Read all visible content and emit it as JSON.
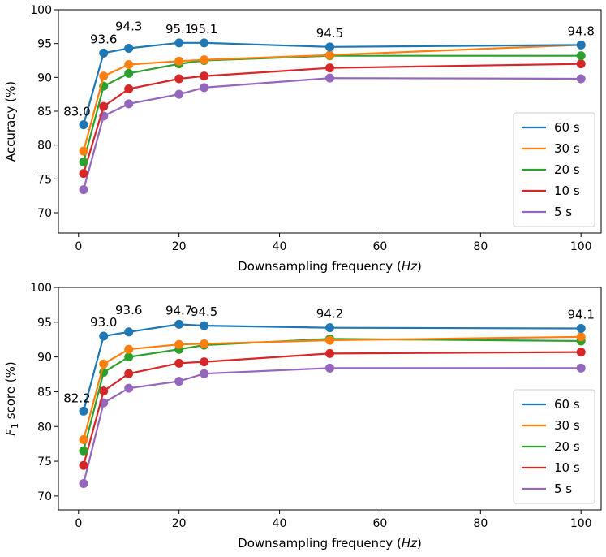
{
  "chart_data": [
    {
      "type": "line",
      "ylabel": "Accuracy (%)",
      "xlabel": {
        "prefix": "Downsampling frequency (",
        "italic": "Hz",
        "suffix": ")"
      },
      "xlim": [
        -4,
        104
      ],
      "ylim": [
        67,
        100
      ],
      "x_ticks": [
        0,
        20,
        40,
        60,
        80,
        100
      ],
      "y_ticks": [
        70,
        75,
        80,
        85,
        90,
        95,
        100
      ],
      "grid": false,
      "legend_position": "lower right",
      "x": [
        1,
        5,
        10,
        20,
        25,
        50,
        100
      ],
      "series": [
        {
          "name": "60 s",
          "color": "#1f77b4",
          "values": [
            83.0,
            93.6,
            94.3,
            95.1,
            95.1,
            94.5,
            94.8
          ]
        },
        {
          "name": "30 s",
          "color": "#ff7f0e",
          "values": [
            79.1,
            90.2,
            91.9,
            92.4,
            92.6,
            93.3,
            94.8
          ]
        },
        {
          "name": "20 s",
          "color": "#2ca02c",
          "values": [
            77.5,
            88.7,
            90.6,
            92.0,
            92.5,
            93.2,
            93.2
          ]
        },
        {
          "name": "10 s",
          "color": "#d62728",
          "values": [
            75.8,
            85.7,
            88.3,
            89.8,
            90.2,
            91.4,
            92.0
          ]
        },
        {
          "name": "5 s",
          "color": "#9467bd",
          "values": [
            73.4,
            84.3,
            86.1,
            87.5,
            88.5,
            89.9,
            89.8
          ]
        }
      ],
      "annotations": [
        {
          "x": 1,
          "y": 83.0,
          "text": "83.0"
        },
        {
          "x": 5,
          "y": 93.6,
          "text": "93.6"
        },
        {
          "x": 10,
          "y": 94.3,
          "text": "94.3"
        },
        {
          "x": 20,
          "y": 95.1,
          "text": "95.1"
        },
        {
          "x": 25,
          "y": 95.1,
          "text": "95.1"
        },
        {
          "x": 50,
          "y": 94.5,
          "text": "94.5"
        },
        {
          "x": 100,
          "y": 94.8,
          "text": "94.8"
        }
      ]
    },
    {
      "type": "line",
      "ylabel": {
        "prefix": "F",
        "subscript": "1",
        "suffix": " score (%)"
      },
      "xlabel": {
        "prefix": "Downsampling frequency (",
        "italic": "Hz",
        "suffix": ")"
      },
      "xlim": [
        -4,
        104
      ],
      "ylim": [
        68,
        100
      ],
      "x_ticks": [
        0,
        20,
        40,
        60,
        80,
        100
      ],
      "y_ticks": [
        70,
        75,
        80,
        85,
        90,
        95,
        100
      ],
      "grid": false,
      "legend_position": "lower right",
      "x": [
        1,
        5,
        10,
        20,
        25,
        50,
        100
      ],
      "series": [
        {
          "name": "60 s",
          "color": "#1f77b4",
          "values": [
            82.2,
            93.0,
            93.6,
            94.7,
            94.5,
            94.2,
            94.1
          ]
        },
        {
          "name": "30 s",
          "color": "#ff7f0e",
          "values": [
            78.1,
            89.0,
            91.1,
            91.8,
            91.9,
            92.4,
            92.9
          ]
        },
        {
          "name": "20 s",
          "color": "#2ca02c",
          "values": [
            76.5,
            87.8,
            90.0,
            91.1,
            91.7,
            92.6,
            92.3
          ]
        },
        {
          "name": "10 s",
          "color": "#d62728",
          "values": [
            74.4,
            85.1,
            87.6,
            89.1,
            89.3,
            90.5,
            90.7
          ]
        },
        {
          "name": "5 s",
          "color": "#9467bd",
          "values": [
            71.8,
            83.4,
            85.5,
            86.5,
            87.6,
            88.4,
            88.4
          ]
        }
      ],
      "annotations": [
        {
          "x": 1,
          "y": 82.2,
          "text": "82.2"
        },
        {
          "x": 5,
          "y": 93.0,
          "text": "93.0"
        },
        {
          "x": 10,
          "y": 93.6,
          "text": "93.6"
        },
        {
          "x": 20,
          "y": 94.7,
          "text": "94.7"
        },
        {
          "x": 25,
          "y": 94.5,
          "text": "94.5"
        },
        {
          "x": 50,
          "y": 94.2,
          "text": "94.2"
        },
        {
          "x": 100,
          "y": 94.1,
          "text": "94.1"
        }
      ]
    }
  ]
}
